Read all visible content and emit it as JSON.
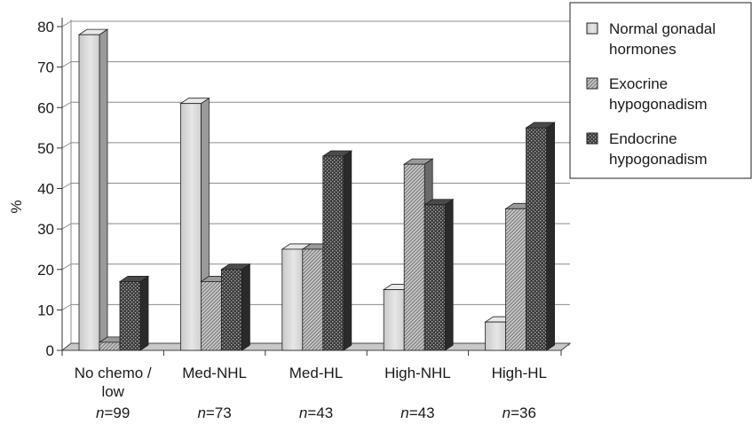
{
  "chart_data": {
    "type": "bar",
    "ylabel": "%",
    "xlabel": "",
    "ylim": [
      0,
      80
    ],
    "yticks": [
      "0",
      "10",
      "20",
      "30",
      "40",
      "50",
      "60",
      "70",
      "80"
    ],
    "grid": true,
    "legend_position": "top-right",
    "categories": [
      {
        "label": "No chemo /",
        "label2": "low",
        "n_prefix": "n",
        "n_value": "=99"
      },
      {
        "label": "Med-NHL",
        "label2": "",
        "n_prefix": "n",
        "n_value": "=73"
      },
      {
        "label": "Med-HL",
        "label2": "",
        "n_prefix": "n",
        "n_value": "=43"
      },
      {
        "label": "High-NHL",
        "label2": "",
        "n_prefix": "n",
        "n_value": "=43"
      },
      {
        "label": "High-HL",
        "label2": "",
        "n_prefix": "n",
        "n_value": "=36"
      }
    ],
    "series": [
      {
        "name_lines": [
          "Normal gonadal",
          "hormones"
        ],
        "pattern": "plain",
        "values": [
          78,
          61,
          25,
          15,
          7
        ]
      },
      {
        "name_lines": [
          "Exocrine",
          "hypogonadism"
        ],
        "pattern": "hatch",
        "values": [
          2,
          17,
          25,
          46,
          35
        ]
      },
      {
        "name_lines": [
          "Endocrine",
          "hypogonadism"
        ],
        "pattern": "dots",
        "values": [
          17,
          20,
          48,
          36,
          55
        ]
      }
    ]
  }
}
